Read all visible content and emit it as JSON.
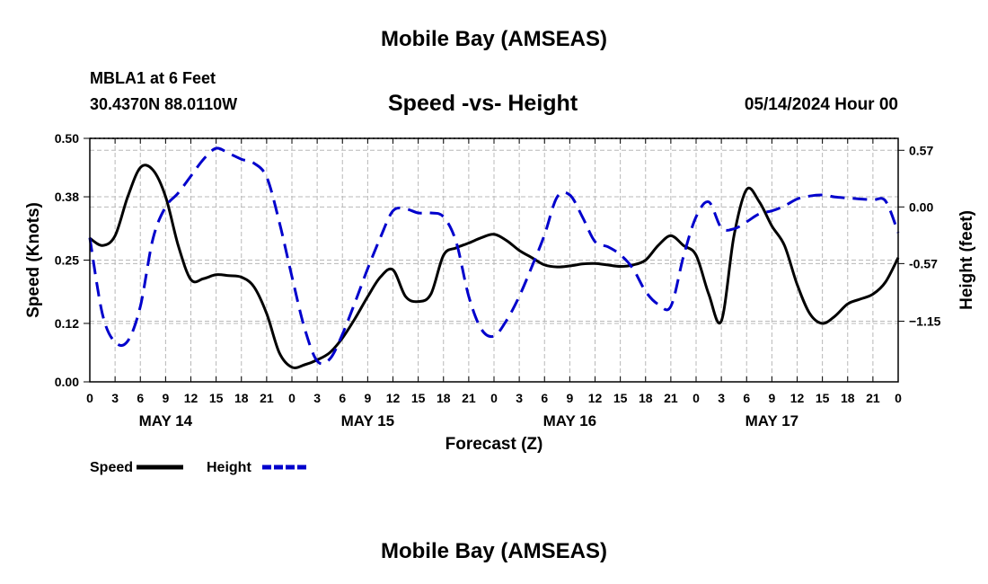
{
  "header": {
    "title": "Mobile Bay (AMSEAS)",
    "station": "MBLA1 at 6 Feet",
    "location": "30.4370N  88.0110W",
    "datetime": "05/14/2024 Hour 00",
    "footer_title": "Mobile Bay (AMSEAS)"
  },
  "chart_data": {
    "type": "line",
    "title": "Speed -vs- Height",
    "xlabel": "Forecast (Z)",
    "ylabel_left": "Speed (Knots)",
    "ylabel_right": "Height (feet)",
    "x_range": [
      0,
      96
    ],
    "x_tick_step": 3,
    "x_tick_labels": [
      "0",
      "3",
      "6",
      "9",
      "12",
      "15",
      "18",
      "21",
      "0",
      "3",
      "6",
      "9",
      "12",
      "15",
      "18",
      "21",
      "0",
      "3",
      "6",
      "9",
      "12",
      "15",
      "18",
      "21",
      "0",
      "3",
      "6",
      "9",
      "12",
      "15",
      "18",
      "21",
      "0"
    ],
    "day_labels": [
      {
        "label": "MAY 14",
        "x": 9
      },
      {
        "label": "MAY 15",
        "x": 33
      },
      {
        "label": "MAY 16",
        "x": 57
      },
      {
        "label": "MAY 17",
        "x": 81
      }
    ],
    "left_axis": {
      "ylim": [
        0,
        0.5
      ],
      "ticks": [
        0.0,
        0.12,
        0.25,
        0.38,
        0.5
      ],
      "tick_labels": [
        "0.00",
        "0.12",
        "0.25",
        "0.38",
        "0.50"
      ]
    },
    "right_axis": {
      "ylim": [
        -1.76,
        0.69
      ],
      "ticks": [
        0.57,
        0.0,
        -0.57,
        -1.15
      ],
      "tick_labels": [
        "0.57",
        "0.00",
        "-0.57",
        "−1.15"
      ]
    },
    "grid": true,
    "legend_position": "bottom-left",
    "series": [
      {
        "name": "Speed",
        "axis": "left",
        "color": "#000000",
        "style": "solid",
        "x": [
          0,
          1.5,
          3,
          4.5,
          6,
          7.5,
          9,
          10.5,
          12,
          13.5,
          15,
          16.5,
          18,
          19.5,
          21,
          22.5,
          24,
          25.5,
          27,
          28.5,
          30,
          31.5,
          33,
          34.5,
          36,
          37.5,
          39,
          40.5,
          42,
          43.5,
          45,
          46.5,
          48,
          49.5,
          51,
          52.5,
          54,
          55.5,
          57,
          58.5,
          60,
          61.5,
          63,
          64.5,
          66,
          67.5,
          69,
          70.5,
          72,
          73.5,
          75,
          76.5,
          78,
          79.5,
          81,
          82.5,
          84,
          85.5,
          87,
          88.5,
          90,
          91.5,
          93,
          94.5,
          96
        ],
        "values": [
          0.295,
          0.28,
          0.3,
          0.38,
          0.44,
          0.435,
          0.38,
          0.28,
          0.21,
          0.212,
          0.22,
          0.218,
          0.215,
          0.195,
          0.14,
          0.06,
          0.03,
          0.035,
          0.045,
          0.06,
          0.09,
          0.13,
          0.175,
          0.215,
          0.23,
          0.175,
          0.165,
          0.18,
          0.26,
          0.275,
          0.285,
          0.296,
          0.303,
          0.29,
          0.27,
          0.255,
          0.24,
          0.236,
          0.238,
          0.242,
          0.243,
          0.24,
          0.237,
          0.24,
          0.25,
          0.28,
          0.3,
          0.28,
          0.26,
          0.18,
          0.125,
          0.3,
          0.395,
          0.37,
          0.32,
          0.28,
          0.2,
          0.14,
          0.12,
          0.135,
          0.16,
          0.17,
          0.18,
          0.205,
          0.255
        ]
      },
      {
        "name": "Height",
        "axis": "right",
        "color": "#0000cc",
        "style": "dashed",
        "x": [
          0,
          1.5,
          3,
          4.5,
          6,
          7.5,
          9,
          10.5,
          12,
          13.5,
          15,
          16.5,
          18,
          19.5,
          21,
          22.5,
          24,
          25.5,
          27,
          28.5,
          30,
          31.5,
          33,
          34.5,
          36,
          37.5,
          39,
          40.5,
          42,
          43.5,
          45,
          46.5,
          48,
          49.5,
          51,
          52.5,
          54,
          55.5,
          57,
          58.5,
          60,
          61.5,
          63,
          64.5,
          66,
          67.5,
          69,
          70.5,
          72,
          73.5,
          75,
          76.5,
          78,
          79.5,
          81,
          82.5,
          84,
          85.5,
          87,
          88.5,
          90,
          91.5,
          93,
          94.5,
          96
        ],
        "values": [
          -0.31,
          -1.08,
          -1.36,
          -1.35,
          -1.0,
          -0.32,
          0.0,
          0.14,
          0.31,
          0.48,
          0.59,
          0.54,
          0.48,
          0.44,
          0.3,
          -0.15,
          -0.7,
          -1.22,
          -1.55,
          -1.53,
          -1.28,
          -0.96,
          -0.62,
          -0.31,
          -0.04,
          -0.02,
          -0.06,
          -0.06,
          -0.1,
          -0.35,
          -0.9,
          -1.23,
          -1.3,
          -1.14,
          -0.9,
          -0.6,
          -0.28,
          0.1,
          0.12,
          -0.1,
          -0.35,
          -0.4,
          -0.48,
          -0.62,
          -0.85,
          -0.98,
          -1.0,
          -0.5,
          -0.1,
          0.05,
          -0.21,
          -0.22,
          -0.15,
          -0.07,
          -0.04,
          0.01,
          0.08,
          0.11,
          0.12,
          0.1,
          0.09,
          0.08,
          0.07,
          0.06,
          -0.26
        ]
      }
    ]
  },
  "legend": [
    {
      "label": "Speed",
      "color": "#000000",
      "style": "solid"
    },
    {
      "label": "Height",
      "color": "#0000cc",
      "style": "dashed"
    }
  ]
}
